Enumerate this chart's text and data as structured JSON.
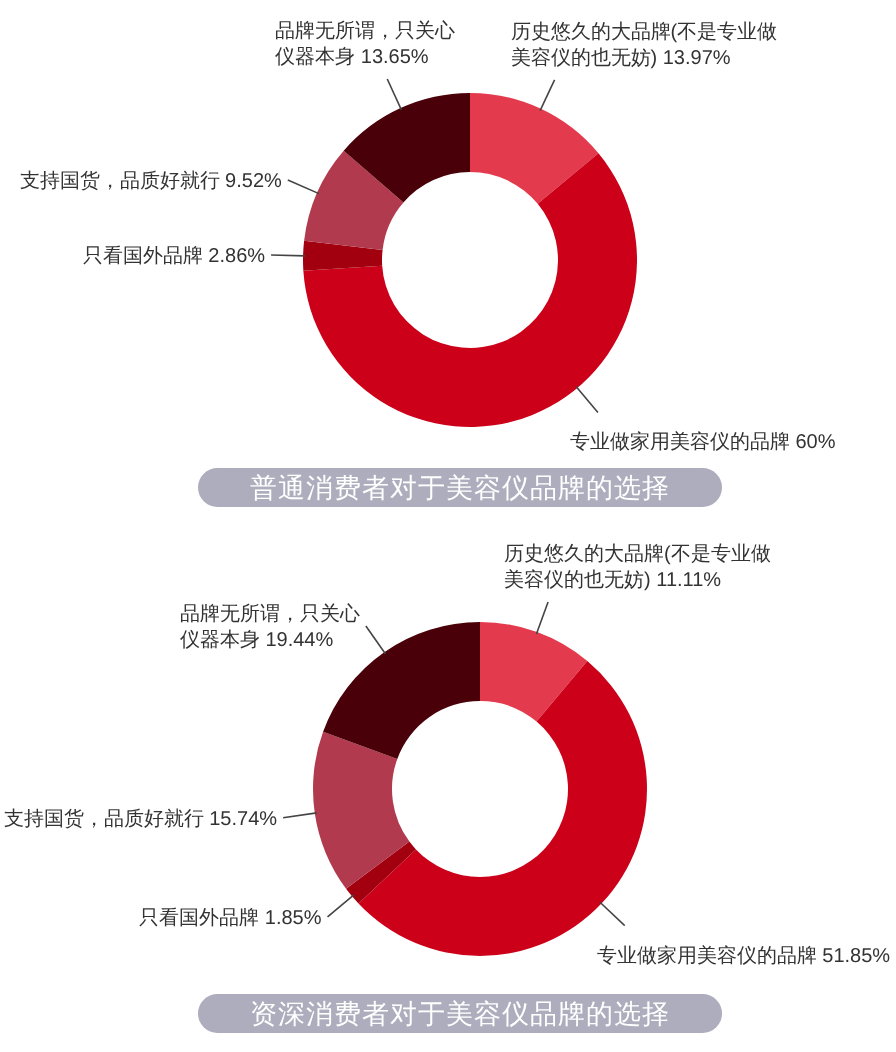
{
  "chart_data": [
    {
      "type": "donut",
      "title": "普通消费者对于美容仪品牌的选择",
      "categories": [
        "历史悠久的大品牌(不是专业做美容仪的也无妨)",
        "专业做家用美容仪的品牌",
        "只看国外品牌",
        "支持国货，品质好就行",
        "品牌无所谓，只关心仪器本身"
      ],
      "values": [
        13.97,
        60,
        2.86,
        9.52,
        13.65
      ],
      "value_labels": [
        "13.97%",
        "60%",
        "2.86%",
        "9.52%",
        "13.65%"
      ],
      "colors": [
        "#e33b4d",
        "#cc0019",
        "#a3000f",
        "#b23a4e",
        "#4a0008"
      ]
    },
    {
      "type": "donut",
      "title": "资深消费者对于美容仪品牌的选择",
      "categories": [
        "历史悠久的大品牌(不是专业做美容仪的也无妨)",
        "专业做家用美容仪的品牌",
        "只看国外品牌",
        "支持国货，品质好就行",
        "品牌无所谓，只关心仪器本身"
      ],
      "values": [
        11.11,
        51.85,
        1.85,
        15.74,
        19.44
      ],
      "value_labels": [
        "11.11%",
        "51.85%",
        "1.85%",
        "15.74%",
        "19.44%"
      ],
      "colors": [
        "#e33b4d",
        "#cc0019",
        "#a3000f",
        "#b23a4e",
        "#4a0008"
      ]
    }
  ]
}
